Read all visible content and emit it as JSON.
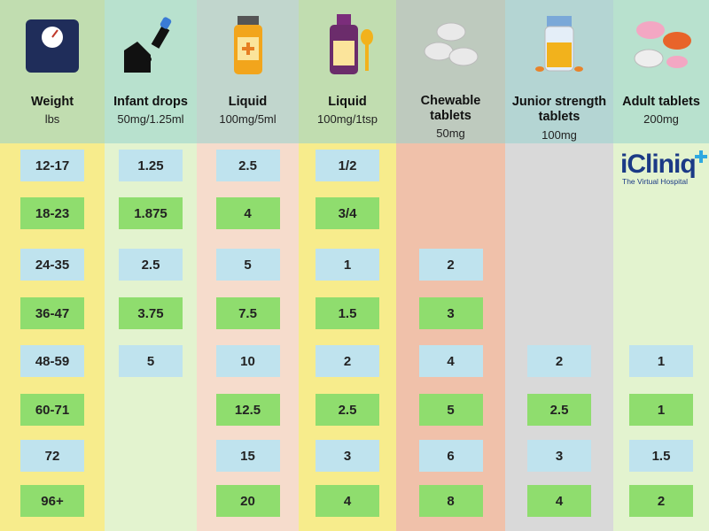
{
  "columns": [
    {
      "title": [
        "Weight"
      ],
      "sub": "lbs",
      "icon": "weighing-scale-icon",
      "bg": "#f7ec8c",
      "cells": [
        "12-17",
        "18-23",
        "24-35",
        "36-47",
        "48-59",
        "60-71",
        "72",
        "96+"
      ]
    },
    {
      "title": [
        "Infant drops"
      ],
      "sub": "50mg/1.25ml",
      "icon": "dropper-icon",
      "bg": "#e3f3cf",
      "cells": [
        "1.25",
        "1.875",
        "2.5",
        "3.75",
        "5",
        "",
        "",
        ""
      ]
    },
    {
      "title": [
        "Liquid"
      ],
      "sub": "100mg/5ml",
      "icon": "medicine-bottle-icon",
      "bg": "#f6dccc",
      "cells": [
        "2.5",
        "4",
        "5",
        "7.5",
        "10",
        "12.5",
        "15",
        "20"
      ]
    },
    {
      "title": [
        "Liquid"
      ],
      "sub": "100mg/1tsp",
      "icon": "syrup-spoon-icon",
      "bg": "#f7ec8c",
      "cells": [
        "1/2",
        "3/4",
        "1",
        "1.5",
        "2",
        "2.5",
        "3",
        "4"
      ]
    },
    {
      "title": [
        "Chewable",
        "tablets"
      ],
      "sub": "50mg",
      "icon": "chewable-tablets-icon",
      "bg": "#f0c1aa",
      "cells": [
        "",
        "",
        "2",
        "3",
        "4",
        "5",
        "6",
        "8"
      ]
    },
    {
      "title": [
        "Junior strength",
        "tablets"
      ],
      "sub": "100mg",
      "icon": "pill-jar-icon",
      "bg": "#d9d9d9",
      "cells": [
        "",
        "",
        "",
        "",
        "2",
        "2.5",
        "3",
        "4"
      ]
    },
    {
      "title": [
        "Adult tablets"
      ],
      "sub": "200mg",
      "icon": "adult-tablets-icon",
      "bg": "#e3f3cf",
      "cells": [
        "",
        "",
        "",
        "",
        "1",
        "1",
        "1.5",
        "2"
      ]
    }
  ],
  "logo": {
    "main": "iCliniq",
    "tagline": "The Virtual Hospital"
  }
}
